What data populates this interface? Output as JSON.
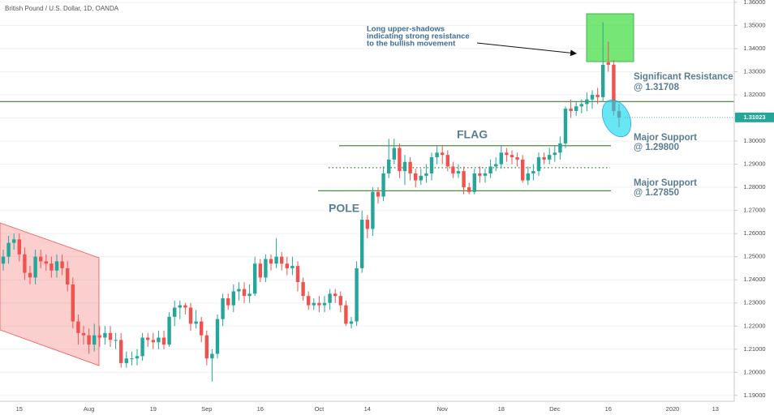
{
  "chart_data": {
    "type": "candlestick",
    "title": "British Pound / U.S. Dollar, 1D, OANDA",
    "categories": [
      null,
      null,
      null,
      "15",
      null,
      null,
      null,
      null,
      null,
      null,
      null,
      null,
      null,
      null,
      null,
      null,
      "Aug",
      null,
      null,
      null,
      null,
      null,
      null,
      null,
      null,
      null,
      null,
      null,
      "19",
      null,
      null,
      null,
      null,
      null,
      null,
      null,
      null,
      null,
      "Sep",
      null,
      null,
      null,
      null,
      null,
      null,
      null,
      null,
      null,
      "16",
      null,
      null,
      null,
      null,
      null,
      null,
      null,
      null,
      null,
      null,
      "Oct",
      null,
      null,
      null,
      null,
      null,
      null,
      null,
      null,
      "14",
      null,
      null,
      null,
      null,
      null,
      null,
      null,
      null,
      null,
      null,
      null,
      null,
      null,
      "Nov",
      null,
      null,
      null,
      null,
      null,
      null,
      null,
      null,
      null,
      null,
      "18",
      null,
      null,
      null,
      null,
      null,
      null,
      null,
      null,
      null,
      "Dec",
      null,
      null,
      null,
      null,
      null,
      null,
      null,
      null,
      null,
      "16",
      null,
      null,
      null,
      null,
      null,
      null,
      null,
      null,
      null,
      null,
      null,
      "2020",
      null,
      null,
      null,
      null,
      null,
      null,
      null,
      "13",
      null,
      null,
      null
    ],
    "open": [
      1.247,
      1.25,
      1.256,
      1.2575,
      1.251,
      1.243,
      1.241,
      1.25,
      1.248,
      1.247,
      1.244,
      1.248,
      1.245,
      1.238,
      1.222,
      1.217,
      1.216,
      1.212,
      1.216,
      1.215,
      1.217,
      1.214,
      1.214,
      1.204,
      1.206,
      1.206,
      1.207,
      1.215,
      1.214,
      1.213,
      1.215,
      1.212,
      1.224,
      1.228,
      1.229,
      1.228,
      1.221,
      1.222,
      1.216,
      1.206,
      1.208,
      1.223,
      1.232,
      1.229,
      1.235,
      1.236,
      1.233,
      1.234,
      1.247,
      1.241,
      1.249,
      1.247,
      1.25,
      1.247,
      1.245,
      1.246,
      1.239,
      1.233,
      1.229,
      1.23,
      1.229,
      1.23,
      1.234,
      1.233,
      1.229,
      1.221,
      1.222,
      1.245,
      1.266,
      1.262,
      1.278,
      1.276,
      1.286,
      1.292,
      1.297,
      1.287,
      1.291,
      1.286,
      1.283,
      1.285,
      1.286,
      1.293,
      1.295,
      1.294,
      1.289,
      1.286,
      1.287,
      1.28,
      1.278,
      1.286,
      1.285,
      1.286,
      1.289,
      1.29,
      1.295,
      1.294,
      1.293,
      1.292,
      1.283,
      1.286,
      1.287,
      1.293,
      1.292,
      1.294,
      1.295,
      1.299,
      1.314,
      1.313,
      1.315,
      1.316,
      1.318,
      1.32,
      1.319,
      1.334,
      1.333,
      1.313,
      null,
      null,
      null,
      null,
      null,
      null,
      null,
      null,
      null,
      null,
      null,
      null,
      null,
      null,
      null,
      null,
      null,
      null,
      null,
      null,
      null
    ],
    "high": [
      1.253,
      1.259,
      1.26,
      1.26,
      1.254,
      1.246,
      1.253,
      1.253,
      1.251,
      1.25,
      1.251,
      1.251,
      1.248,
      1.241,
      1.225,
      1.22,
      1.219,
      1.221,
      1.22,
      1.22,
      1.22,
      1.217,
      1.217,
      1.209,
      1.209,
      1.21,
      1.217,
      1.217,
      1.217,
      1.218,
      1.218,
      1.226,
      1.231,
      1.231,
      1.23,
      1.23,
      1.227,
      1.224,
      1.218,
      1.21,
      1.225,
      1.234,
      1.234,
      1.238,
      1.239,
      1.239,
      1.238,
      1.25,
      1.249,
      1.251,
      1.251,
      1.258,
      1.252,
      1.25,
      1.25,
      1.248,
      1.241,
      1.235,
      1.232,
      1.233,
      1.233,
      1.236,
      1.236,
      1.235,
      1.231,
      1.224,
      1.248,
      1.27,
      1.268,
      1.28,
      1.28,
      1.289,
      1.301,
      1.301,
      1.299,
      1.294,
      1.293,
      1.288,
      1.288,
      1.29,
      1.295,
      1.298,
      1.298,
      1.296,
      1.291,
      1.29,
      1.289,
      1.282,
      1.288,
      1.289,
      1.288,
      1.292,
      1.293,
      1.298,
      1.297,
      1.296,
      1.295,
      1.294,
      1.289,
      1.29,
      1.295,
      1.295,
      1.297,
      1.298,
      1.302,
      1.315,
      1.318,
      1.317,
      1.318,
      1.321,
      1.322,
      1.323,
      1.3514,
      1.343,
      1.335,
      1.316,
      null,
      null,
      null,
      null,
      null,
      null,
      null,
      null,
      null,
      null,
      null,
      null,
      null,
      null,
      null,
      null,
      null,
      null,
      null,
      null,
      null
    ],
    "low": [
      1.244,
      1.247,
      1.253,
      1.248,
      1.24,
      1.238,
      1.238,
      1.245,
      1.244,
      1.241,
      1.241,
      1.242,
      1.235,
      1.219,
      1.212,
      1.212,
      1.208,
      1.209,
      1.211,
      1.212,
      1.211,
      1.21,
      1.202,
      1.202,
      1.203,
      1.203,
      1.205,
      1.211,
      1.21,
      1.21,
      1.21,
      1.211,
      1.22,
      1.223,
      1.225,
      1.218,
      1.219,
      1.213,
      1.203,
      1.196,
      1.206,
      1.22,
      1.227,
      1.226,
      1.231,
      1.23,
      1.23,
      1.233,
      1.239,
      1.239,
      1.244,
      1.245,
      1.244,
      1.242,
      1.242,
      1.235,
      1.231,
      1.227,
      1.227,
      1.226,
      1.226,
      1.227,
      1.23,
      1.226,
      1.22,
      1.219,
      1.22,
      1.243,
      1.258,
      1.259,
      1.273,
      1.274,
      1.284,
      1.29,
      1.284,
      1.281,
      1.283,
      1.28,
      1.281,
      1.282,
      1.283,
      1.29,
      1.29,
      1.287,
      1.284,
      1.284,
      1.277,
      1.277,
      1.277,
      1.282,
      1.282,
      1.284,
      1.287,
      1.288,
      1.291,
      1.29,
      1.289,
      1.282,
      1.281,
      1.283,
      1.285,
      1.29,
      1.29,
      1.291,
      1.292,
      1.297,
      1.31,
      1.311,
      1.312,
      1.313,
      1.314,
      1.316,
      1.317,
      1.33,
      1.311,
      1.306,
      null,
      null,
      null,
      null,
      null,
      null,
      null,
      null,
      null,
      null,
      null,
      null,
      null,
      null,
      null,
      null,
      null,
      null,
      null,
      null,
      null
    ],
    "close": [
      1.25,
      1.256,
      1.2575,
      1.251,
      1.243,
      1.241,
      1.25,
      1.248,
      1.247,
      1.244,
      1.248,
      1.245,
      1.238,
      1.222,
      1.217,
      1.216,
      1.212,
      1.216,
      1.215,
      1.217,
      1.214,
      1.214,
      1.204,
      1.206,
      1.206,
      1.207,
      1.215,
      1.214,
      1.213,
      1.215,
      1.212,
      1.224,
      1.228,
      1.229,
      1.228,
      1.221,
      1.222,
      1.216,
      1.206,
      1.208,
      1.223,
      1.232,
      1.229,
      1.235,
      1.236,
      1.233,
      1.234,
      1.247,
      1.241,
      1.249,
      1.247,
      1.25,
      1.247,
      1.245,
      1.246,
      1.239,
      1.233,
      1.229,
      1.23,
      1.229,
      1.23,
      1.234,
      1.233,
      1.229,
      1.221,
      1.222,
      1.245,
      1.266,
      1.262,
      1.278,
      1.276,
      1.286,
      1.292,
      1.297,
      1.287,
      1.291,
      1.286,
      1.283,
      1.285,
      1.286,
      1.293,
      1.295,
      1.294,
      1.289,
      1.286,
      1.287,
      1.28,
      1.278,
      1.286,
      1.285,
      1.286,
      1.289,
      1.29,
      1.295,
      1.294,
      1.293,
      1.292,
      1.283,
      1.286,
      1.287,
      1.293,
      1.292,
      1.294,
      1.295,
      1.299,
      1.314,
      1.313,
      1.315,
      1.316,
      1.318,
      1.32,
      1.319,
      1.333,
      1.333,
      1.313,
      1.3102,
      null,
      null,
      null,
      null,
      null,
      null,
      null,
      null,
      null,
      null,
      null,
      null,
      null,
      null,
      null,
      null,
      null,
      null,
      null,
      null,
      null
    ],
    "up_color": "#26a69a",
    "down_color": "#ef5350",
    "ylim": [
      1.1875,
      1.361
    ],
    "yticks": [
      {
        "value": 1.19,
        "label": "1.19000"
      },
      {
        "value": 1.2,
        "label": "1.20000"
      },
      {
        "value": 1.21,
        "label": "1.21000"
      },
      {
        "value": 1.22,
        "label": "1.22000"
      },
      {
        "value": 1.23,
        "label": "1.23000"
      },
      {
        "value": 1.24,
        "label": "1.24000"
      },
      {
        "value": 1.25,
        "label": "1.25000"
      },
      {
        "value": 1.26,
        "label": "1.26000"
      },
      {
        "value": 1.27,
        "label": "1.27000"
      },
      {
        "value": 1.28,
        "label": "1.28000"
      },
      {
        "value": 1.29,
        "label": "1.29000"
      },
      {
        "value": 1.3,
        "label": "1.30000"
      },
      {
        "value": 1.31,
        "label": "1.31000"
      },
      {
        "value": 1.32,
        "label": "1.32000"
      },
      {
        "value": 1.33,
        "label": "1.33000"
      },
      {
        "value": 1.34,
        "label": "1.34000"
      },
      {
        "value": 1.35,
        "label": "1.35000"
      },
      {
        "value": 1.36,
        "label": "1.36000"
      }
    ],
    "grid": true,
    "last_price": 1.31023,
    "levels": [
      {
        "text": [
          "Significant Resistance",
          "@ 1.31708"
        ],
        "value": 1.31708
      },
      {
        "text": [
          "Major Support",
          "@ 1.29800"
        ],
        "value": 1.298
      },
      {
        "text": [
          "Major Support",
          "@ 1.27850"
        ],
        "value": 1.2785
      }
    ],
    "midline": 1.2885,
    "shadow_note": [
      "Long upper-shadows",
      "indicating strong resistance",
      "to the bullish movement"
    ],
    "flag_label": "FLAG",
    "pole_label": "POLE"
  }
}
